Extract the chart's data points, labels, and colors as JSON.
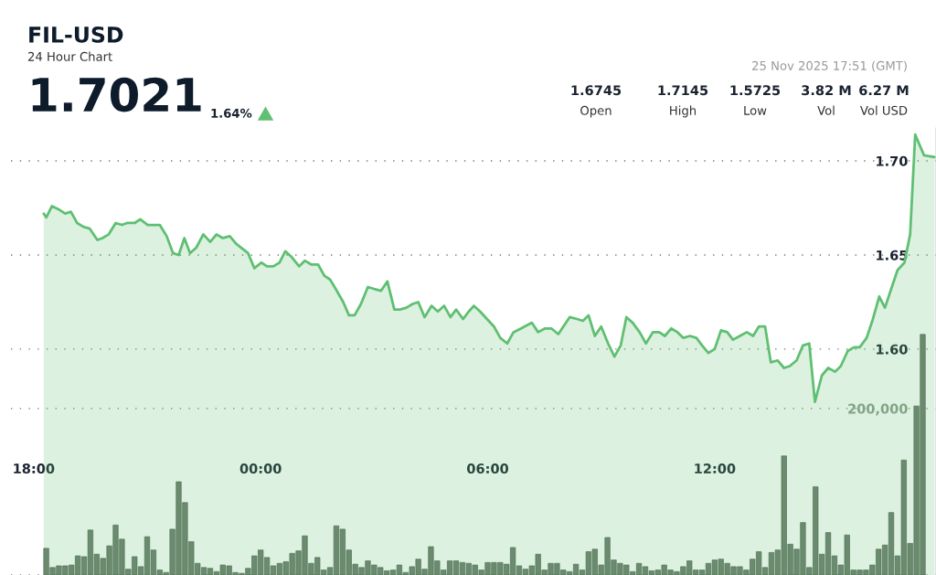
{
  "chart_data": {
    "type": "area",
    "title": "FIL-USD",
    "subtitle": "24 Hour Chart",
    "annotations": [
      "1.7021",
      "1.64%",
      "1.6745",
      "Open",
      "1.7145",
      "High",
      "1.5725",
      "Low",
      "3.82 M",
      "Vol",
      "6.27 M",
      "Vol USD",
      "25 Nov 2025 17:51 (GMT)"
    ],
    "xlim": [
      "2025-11-24T17:24",
      "2025-11-25T17:51"
    ],
    "xticks": [
      {
        "value": "2025-11-24T18:00",
        "label": "18:00"
      },
      {
        "value": "2025-11-25T00:00",
        "label": "00:00"
      },
      {
        "value": "2025-11-25T06:00",
        "label": "06:00"
      },
      {
        "value": "2025-11-25T12:00",
        "label": "12:00"
      }
    ],
    "ylim": [
      1.48,
      1.7175
    ],
    "yticks": [
      {
        "value": 1.6,
        "label": "1.60"
      },
      {
        "value": 1.65,
        "label": "1.65"
      },
      {
        "value": 1.7,
        "label": "1.70"
      }
    ],
    "y2lim": [
      0,
      537000
    ],
    "y2ticks": [
      {
        "value": 0,
        "label": null
      },
      {
        "value": 200000,
        "label": "200,000"
      }
    ],
    "grid": "y",
    "legend": false,
    "marker": "none",
    "line_style": "solid",
    "series": [
      {
        "color": "#5fbf72",
        "x": [
          "2025-11-24T18:16",
          "2025-11-24T18:20",
          "2025-11-24T18:29",
          "2025-11-24T18:41",
          "2025-11-24T18:50",
          "2025-11-24T18:59",
          "2025-11-24T19:09",
          "2025-11-24T19:19",
          "2025-11-24T19:29",
          "2025-11-24T19:41",
          "2025-11-24T19:49",
          "2025-11-24T19:59",
          "2025-11-24T20:10",
          "2025-11-24T20:20",
          "2025-11-24T20:28",
          "2025-11-24T20:40",
          "2025-11-24T20:49",
          "2025-11-24T21:01",
          "2025-11-24T21:20",
          "2025-11-24T21:31",
          "2025-11-24T21:41",
          "2025-11-24T21:50",
          "2025-11-24T21:59",
          "2025-11-24T22:08",
          "2025-11-24T22:18",
          "2025-11-24T22:29",
          "2025-11-24T22:40",
          "2025-11-24T22:50",
          "2025-11-24T23:00",
          "2025-11-24T23:11",
          "2025-11-24T23:21",
          "2025-11-24T23:40",
          "2025-11-24T23:50",
          "2025-11-25T00:01",
          "2025-11-25T00:10",
          "2025-11-25T00:20",
          "2025-11-25T00:30",
          "2025-11-25T00:39",
          "2025-11-25T00:49",
          "2025-11-25T01:01",
          "2025-11-25T01:10",
          "2025-11-25T01:20",
          "2025-11-25T01:31",
          "2025-11-25T01:41",
          "2025-11-25T01:50",
          "2025-11-25T01:59",
          "2025-11-25T02:11",
          "2025-11-25T02:20",
          "2025-11-25T02:29",
          "2025-11-25T02:39",
          "2025-11-25T02:50",
          "2025-11-25T03:00",
          "2025-11-25T03:11",
          "2025-11-25T03:21",
          "2025-11-25T03:32",
          "2025-11-25T03:41",
          "2025-11-25T03:51",
          "2025-11-25T04:01",
          "2025-11-25T04:10",
          "2025-11-25T04:20",
          "2025-11-25T04:31",
          "2025-11-25T04:41",
          "2025-11-25T04:51",
          "2025-11-25T05:01",
          "2025-11-25T05:10",
          "2025-11-25T05:21",
          "2025-11-25T05:30",
          "2025-11-25T05:38",
          "2025-11-25T05:48",
          "2025-11-25T05:59",
          "2025-11-25T06:10",
          "2025-11-25T06:20",
          "2025-11-25T06:31",
          "2025-11-25T06:41",
          "2025-11-25T06:53",
          "2025-11-25T07:10",
          "2025-11-25T07:20",
          "2025-11-25T07:31",
          "2025-11-25T07:41",
          "2025-11-25T07:52",
          "2025-11-25T08:10",
          "2025-11-25T08:22",
          "2025-11-25T08:31",
          "2025-11-25T08:40",
          "2025-11-25T08:50",
          "2025-11-25T09:00",
          "2025-11-25T09:11",
          "2025-11-25T09:21",
          "2025-11-25T09:31",
          "2025-11-25T09:40",
          "2025-11-25T09:50",
          "2025-11-25T10:01",
          "2025-11-25T10:11",
          "2025-11-25T10:22",
          "2025-11-25T10:32",
          "2025-11-25T10:41",
          "2025-11-25T10:51",
          "2025-11-25T11:01",
          "2025-11-25T11:10",
          "2025-11-25T11:21",
          "2025-11-25T11:31",
          "2025-11-25T11:40",
          "2025-11-25T11:50",
          "2025-11-25T12:00",
          "2025-11-25T12:10",
          "2025-11-25T12:20",
          "2025-11-25T12:29",
          "2025-11-25T12:40",
          "2025-11-25T12:51",
          "2025-11-25T13:01",
          "2025-11-25T13:10",
          "2025-11-25T13:20",
          "2025-11-25T13:29",
          "2025-11-25T13:40",
          "2025-11-25T13:50",
          "2025-11-25T13:59",
          "2025-11-25T14:10",
          "2025-11-25T14:20",
          "2025-11-25T14:30",
          "2025-11-25T14:39",
          "2025-11-25T14:50",
          "2025-11-25T15:00",
          "2025-11-25T15:11",
          "2025-11-25T15:20",
          "2025-11-25T15:31",
          "2025-11-25T15:41",
          "2025-11-25T15:50",
          "2025-11-25T16:01",
          "2025-11-25T16:10",
          "2025-11-25T16:21",
          "2025-11-25T16:30",
          "2025-11-25T16:40",
          "2025-11-25T16:50",
          "2025-11-25T17:01",
          "2025-11-25T17:10",
          "2025-11-25T17:18",
          "2025-11-25T17:32",
          "2025-11-25T17:49"
        ],
        "values": [
          1.672,
          1.67,
          1.676,
          1.674,
          1.672,
          1.673,
          1.667,
          1.665,
          1.664,
          1.658,
          1.659,
          1.661,
          1.667,
          1.666,
          1.667,
          1.667,
          1.669,
          1.666,
          1.666,
          1.66,
          1.651,
          1.65,
          1.659,
          1.651,
          1.654,
          1.661,
          1.657,
          1.661,
          1.659,
          1.66,
          1.656,
          1.651,
          1.643,
          1.646,
          1.644,
          1.644,
          1.646,
          1.652,
          1.649,
          1.644,
          1.647,
          1.645,
          1.645,
          1.639,
          1.637,
          1.632,
          1.625,
          1.618,
          1.618,
          1.624,
          1.633,
          1.632,
          1.631,
          1.636,
          1.621,
          1.621,
          1.622,
          1.624,
          1.625,
          1.617,
          1.623,
          1.62,
          1.623,
          1.617,
          1.621,
          1.616,
          1.62,
          1.623,
          1.62,
          1.616,
          1.612,
          1.606,
          1.603,
          1.609,
          1.611,
          1.614,
          1.609,
          1.611,
          1.611,
          1.608,
          1.617,
          1.616,
          1.615,
          1.618,
          1.607,
          1.612,
          1.603,
          1.596,
          1.602,
          1.617,
          1.614,
          1.609,
          1.603,
          1.609,
          1.609,
          1.607,
          1.611,
          1.609,
          1.606,
          1.607,
          1.606,
          1.602,
          1.598,
          1.6,
          1.61,
          1.609,
          1.605,
          1.607,
          1.609,
          1.607,
          1.612,
          1.612,
          1.593,
          1.594,
          1.59,
          1.591,
          1.594,
          1.602,
          1.603,
          1.572,
          1.586,
          1.59,
          1.588,
          1.591,
          1.599,
          1.601,
          1.601,
          1.606,
          1.615,
          1.628,
          1.622,
          1.632,
          1.642,
          1.646,
          1.661,
          1.714,
          1.703,
          1.702
        ]
      },
      {
        "type": "bar",
        "axis": "y2",
        "color": "#6e7d6e",
        "x": [
          "2025-11-24T18:20",
          "2025-11-24T18:30",
          "2025-11-24T18:40",
          "2025-11-24T18:50",
          "2025-11-24T19:00",
          "2025-11-24T19:10",
          "2025-11-24T19:20",
          "2025-11-24T19:30",
          "2025-11-24T19:40",
          "2025-11-24T19:50",
          "2025-11-24T20:00",
          "2025-11-24T20:10",
          "2025-11-24T20:20",
          "2025-11-24T20:30",
          "2025-11-24T20:40",
          "2025-11-24T20:50",
          "2025-11-24T21:00",
          "2025-11-24T21:10",
          "2025-11-24T21:20",
          "2025-11-24T21:30",
          "2025-11-24T21:40",
          "2025-11-24T21:50",
          "2025-11-24T22:00",
          "2025-11-24T22:10",
          "2025-11-24T22:20",
          "2025-11-24T22:30",
          "2025-11-24T22:40",
          "2025-11-24T22:50",
          "2025-11-24T23:00",
          "2025-11-24T23:10",
          "2025-11-24T23:20",
          "2025-11-24T23:30",
          "2025-11-24T23:40",
          "2025-11-24T23:50",
          "2025-11-25T00:00",
          "2025-11-25T00:10",
          "2025-11-25T00:20",
          "2025-11-25T00:30",
          "2025-11-25T00:40",
          "2025-11-25T00:50",
          "2025-11-25T01:00",
          "2025-11-25T01:10",
          "2025-11-25T01:20",
          "2025-11-25T01:30",
          "2025-11-25T01:40",
          "2025-11-25T01:50",
          "2025-11-25T02:00",
          "2025-11-25T02:10",
          "2025-11-25T02:20",
          "2025-11-25T02:30",
          "2025-11-25T02:40",
          "2025-11-25T02:50",
          "2025-11-25T03:00",
          "2025-11-25T03:10",
          "2025-11-25T03:20",
          "2025-11-25T03:30",
          "2025-11-25T03:40",
          "2025-11-25T03:50",
          "2025-11-25T04:00",
          "2025-11-25T04:10",
          "2025-11-25T04:20",
          "2025-11-25T04:30",
          "2025-11-25T04:40",
          "2025-11-25T04:50",
          "2025-11-25T05:00",
          "2025-11-25T05:10",
          "2025-11-25T05:20",
          "2025-11-25T05:30",
          "2025-11-25T05:40",
          "2025-11-25T05:50",
          "2025-11-25T06:00",
          "2025-11-25T06:10",
          "2025-11-25T06:20",
          "2025-11-25T06:30",
          "2025-11-25T06:40",
          "2025-11-25T06:50",
          "2025-11-25T07:00",
          "2025-11-25T07:10",
          "2025-11-25T07:20",
          "2025-11-25T07:30",
          "2025-11-25T07:40",
          "2025-11-25T07:50",
          "2025-11-25T08:00",
          "2025-11-25T08:10",
          "2025-11-25T08:20",
          "2025-11-25T08:30",
          "2025-11-25T08:40",
          "2025-11-25T08:50",
          "2025-11-25T09:00",
          "2025-11-25T09:10",
          "2025-11-25T09:20",
          "2025-11-25T09:30",
          "2025-11-25T09:40",
          "2025-11-25T09:50",
          "2025-11-25T10:00",
          "2025-11-25T10:10",
          "2025-11-25T10:20",
          "2025-11-25T10:30",
          "2025-11-25T10:40",
          "2025-11-25T10:50",
          "2025-11-25T11:00",
          "2025-11-25T11:10",
          "2025-11-25T11:20",
          "2025-11-25T11:30",
          "2025-11-25T11:40",
          "2025-11-25T11:50",
          "2025-11-25T12:00",
          "2025-11-25T12:10",
          "2025-11-25T12:20",
          "2025-11-25T12:30",
          "2025-11-25T12:40",
          "2025-11-25T12:50",
          "2025-11-25T13:00",
          "2025-11-25T13:10",
          "2025-11-25T13:20",
          "2025-11-25T13:30",
          "2025-11-25T13:40",
          "2025-11-25T13:50",
          "2025-11-25T14:00",
          "2025-11-25T14:10",
          "2025-11-25T14:20",
          "2025-11-25T14:30",
          "2025-11-25T14:40",
          "2025-11-25T14:50",
          "2025-11-25T15:00",
          "2025-11-25T15:10",
          "2025-11-25T15:20",
          "2025-11-25T15:30",
          "2025-11-25T15:40",
          "2025-11-25T15:50",
          "2025-11-25T16:00",
          "2025-11-25T16:10",
          "2025-11-25T16:20",
          "2025-11-25T16:30",
          "2025-11-25T16:40",
          "2025-11-25T16:50",
          "2025-11-25T17:00",
          "2025-11-25T17:10",
          "2025-11-25T17:20",
          "2025-11-25T17:30"
        ],
        "values": [
          32000,
          9000,
          11000,
          11000,
          12000,
          23000,
          22000,
          54000,
          25000,
          20000,
          35000,
          60000,
          43000,
          7000,
          22000,
          10000,
          46000,
          30000,
          6000,
          3000,
          55000,
          112000,
          87000,
          40000,
          14000,
          9000,
          8000,
          4000,
          12000,
          11000,
          3000,
          2000,
          8000,
          23000,
          30000,
          21000,
          11000,
          14000,
          16000,
          26000,
          29000,
          47000,
          14000,
          21000,
          6000,
          9000,
          59000,
          55000,
          30000,
          13000,
          9000,
          17000,
          12000,
          9000,
          5000,
          6000,
          12000,
          3000,
          10000,
          19000,
          7000,
          34000,
          17000,
          6000,
          17000,
          17000,
          15000,
          14000,
          12000,
          6000,
          15000,
          15000,
          15000,
          13000,
          33000,
          11000,
          7000,
          11000,
          25000,
          6000,
          14000,
          14000,
          6000,
          4000,
          13000,
          6000,
          28000,
          31000,
          12000,
          45000,
          18000,
          14000,
          12000,
          4000,
          14000,
          10000,
          5000,
          6000,
          12000,
          6000,
          4000,
          10000,
          17000,
          6000,
          6000,
          14000,
          18000,
          19000,
          14000,
          10000,
          10000,
          6000,
          19000,
          28000,
          9000,
          27000,
          30000,
          143000,
          37000,
          31000,
          63000,
          9000,
          106000,
          25000,
          51000,
          23000,
          12000,
          48000,
          6000,
          6000,
          6000,
          12000,
          31000,
          36000,
          75000,
          23000,
          138000,
          38000,
          203000,
          289000
        ]
      }
    ]
  }
}
